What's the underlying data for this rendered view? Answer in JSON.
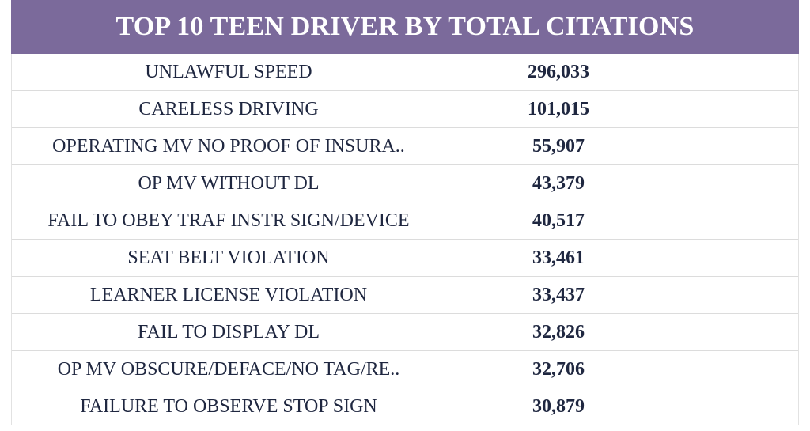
{
  "chart_data": {
    "type": "table",
    "title": "TOP 10 TEEN DRIVER BY TOTAL CITATIONS",
    "colors": {
      "header_bg": "#7b6a9b",
      "header_text": "#ffffff",
      "row_text": "#1f2740",
      "row_border": "#dcdcdc"
    },
    "rows": [
      {
        "label": "UNLAWFUL SPEED",
        "value": "296,033"
      },
      {
        "label": "CARELESS DRIVING",
        "value": "101,015"
      },
      {
        "label": "OPERATING MV NO PROOF OF INSURA..",
        "value": "55,907"
      },
      {
        "label": "OP MV WITHOUT DL",
        "value": "43,379"
      },
      {
        "label": "FAIL TO OBEY TRAF INSTR SIGN/DEVICE",
        "value": "40,517"
      },
      {
        "label": "SEAT BELT VIOLATION",
        "value": "33,461"
      },
      {
        "label": "LEARNER LICENSE VIOLATION",
        "value": "33,437"
      },
      {
        "label": "FAIL TO DISPLAY DL",
        "value": "32,826"
      },
      {
        "label": "OP MV OBSCURE/DEFACE/NO TAG/RE..",
        "value": "32,706"
      },
      {
        "label": "FAILURE TO OBSERVE STOP SIGN",
        "value": "30,879"
      }
    ]
  }
}
